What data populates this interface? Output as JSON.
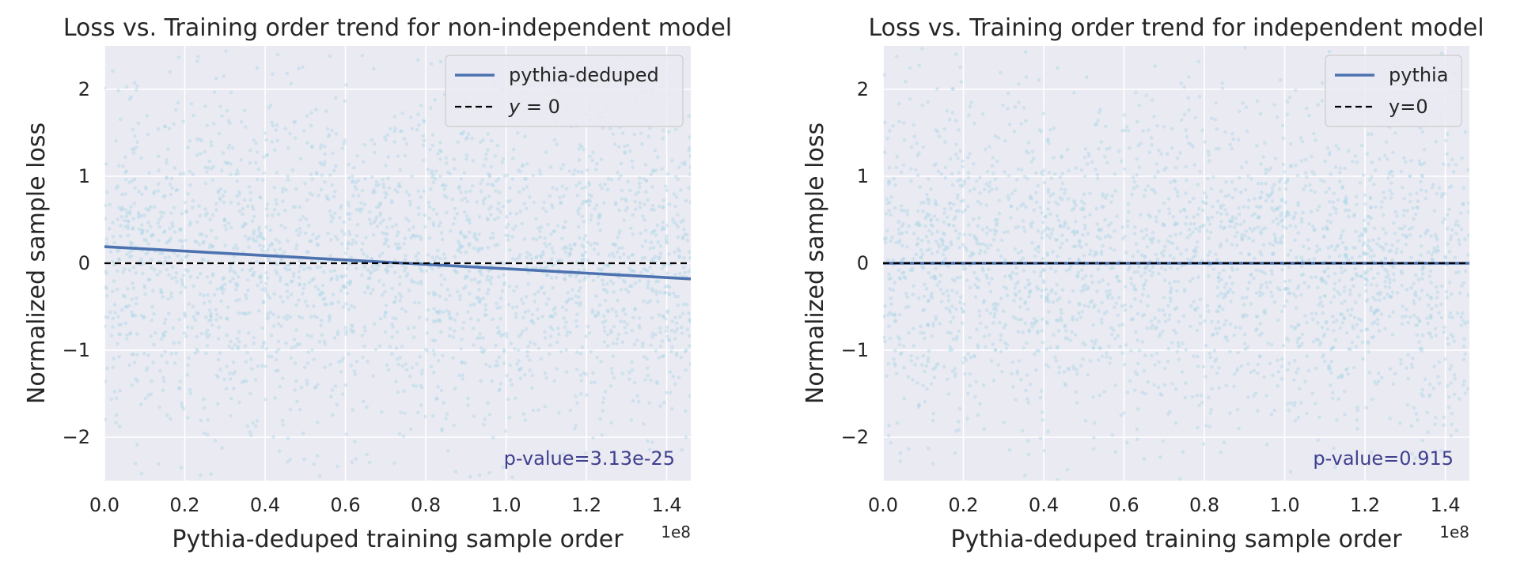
{
  "colors": {
    "axes_bg": "#eaeaf2",
    "grid": "#ffffff",
    "scatter": "#add8e6",
    "trend_line": "#4c72b0",
    "zero_line": "#000000",
    "pvalue_text": "#3f3f8f",
    "text": "#262626"
  },
  "chart_data": [
    {
      "type": "scatter",
      "title": "Loss vs. Training order trend for non-independent model",
      "xlabel": "Pythia-deduped training sample order",
      "ylabel": "Normalized sample loss",
      "x_offset_label": "1e8",
      "xlim": [
        0,
        1.46
      ],
      "ylim": [
        -2.5,
        2.5
      ],
      "xticks": [
        0.0,
        0.2,
        0.4,
        0.6,
        0.8,
        1.0,
        1.2,
        1.4
      ],
      "xtick_labels": [
        "0.0",
        "0.2",
        "0.4",
        "0.6",
        "0.8",
        "1.0",
        "1.2",
        "1.4"
      ],
      "yticks": [
        2,
        1,
        0,
        -1,
        -2
      ],
      "ytick_labels": [
        "2",
        "1",
        "0",
        "−1",
        "−2"
      ],
      "grid": true,
      "legend_position": "top-right",
      "series": [
        {
          "name": "pythia-deduped",
          "kind": "line",
          "style": "solid",
          "x": [
            0.0,
            1.46
          ],
          "y": [
            0.19,
            -0.18
          ]
        },
        {
          "name": "y = 0",
          "name_parts": {
            "var": "y",
            "rest": " = 0"
          },
          "kind": "line",
          "style": "dashed",
          "x": [
            0.0,
            1.46
          ],
          "y": [
            0,
            0
          ]
        }
      ],
      "scatter": {
        "x_range": [
          0.0,
          1.46
        ],
        "mean": 0.0,
        "spread": 1.0
      },
      "annotation": "p-value=3.13e-25"
    },
    {
      "type": "scatter",
      "title": "Loss vs. Training order trend for independent model",
      "xlabel": "Pythia-deduped training sample order",
      "ylabel": "Normalized sample loss",
      "x_offset_label": "1e8",
      "xlim": [
        0,
        1.46
      ],
      "ylim": [
        -2.5,
        2.5
      ],
      "xticks": [
        0.0,
        0.2,
        0.4,
        0.6,
        0.8,
        1.0,
        1.2,
        1.4
      ],
      "xtick_labels": [
        "0.0",
        "0.2",
        "0.4",
        "0.6",
        "0.8",
        "1.0",
        "1.2",
        "1.4"
      ],
      "yticks": [
        2,
        1,
        0,
        -1,
        -2
      ],
      "ytick_labels": [
        "2",
        "1",
        "0",
        "−1",
        "−2"
      ],
      "grid": true,
      "legend_position": "top-right",
      "series": [
        {
          "name": "pythia",
          "kind": "line",
          "style": "solid",
          "x": [
            0.0,
            1.46
          ],
          "y": [
            0.0,
            0.0
          ]
        },
        {
          "name": "y=0",
          "kind": "line",
          "style": "dashed",
          "x": [
            0.0,
            1.46
          ],
          "y": [
            0,
            0
          ]
        }
      ],
      "scatter": {
        "x_range": [
          0.0,
          1.46
        ],
        "mean": 0.0,
        "spread": 1.0
      },
      "annotation": "p-value=0.915"
    }
  ]
}
